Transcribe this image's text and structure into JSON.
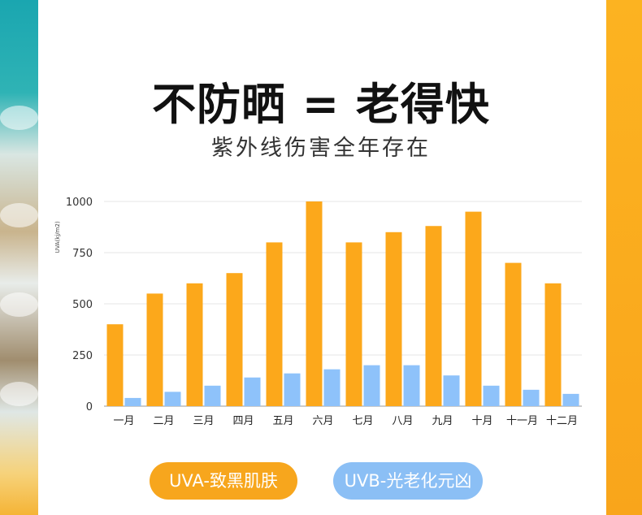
{
  "title": "不防晒 = 老得快",
  "subtitle": "紫外线伤害全年存在",
  "legend": {
    "uva_label": "UVA-致黑肌肤",
    "uvb_label": "UVB-光老化元凶"
  },
  "colors": {
    "uva": "#fca81b",
    "uvb": "#8ec2fa",
    "accent_side": "#fcb321"
  },
  "chart_data": {
    "type": "bar",
    "categories": [
      "一月",
      "二月",
      "三月",
      "四月",
      "五月",
      "六月",
      "七月",
      "八月",
      "九月",
      "十月",
      "十一月",
      "十二月"
    ],
    "series": [
      {
        "name": "UVA-致黑肌肤",
        "values": [
          400,
          550,
          600,
          650,
          800,
          1000,
          800,
          850,
          880,
          950,
          700,
          600
        ]
      },
      {
        "name": "UVB-光老化元凶",
        "values": [
          40,
          70,
          100,
          140,
          160,
          180,
          200,
          200,
          150,
          100,
          80,
          60
        ]
      }
    ],
    "ylabel": "UVA(kj/m2)",
    "ylim": [
      0,
      1000
    ],
    "yticks": [
      0,
      250,
      500,
      750,
      1000
    ],
    "grid": true,
    "legend_position": "bottom"
  }
}
